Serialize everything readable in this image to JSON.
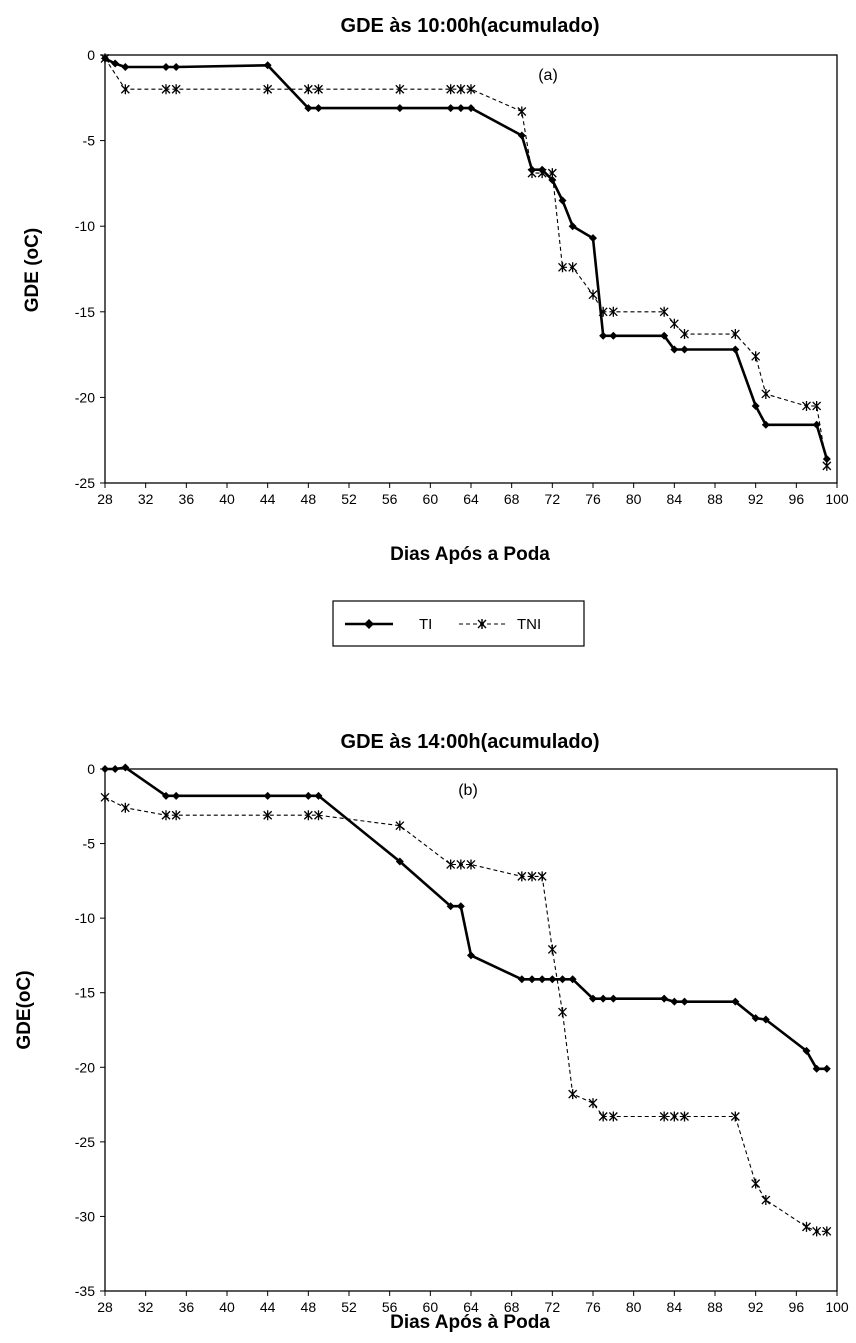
{
  "chart_data": [
    {
      "type": "line",
      "title": "GDE às 10:00h(acumulado)",
      "xlabel": "Dias Após a Poda",
      "ylabel": "GDE (oC)",
      "annotation": "(a)",
      "xlim": [
        28,
        100
      ],
      "ylim": [
        -25,
        0
      ],
      "x_ticks": [
        "28",
        "32",
        "36",
        "40",
        "44",
        "48",
        "52",
        "56",
        "60",
        "64",
        "68",
        "72",
        "76",
        "80",
        "84",
        "88",
        "92",
        "96",
        "100"
      ],
      "y_ticks": [
        "0",
        "-5",
        "-10",
        "-15",
        "-20",
        "-25"
      ],
      "grid": false,
      "series": [
        {
          "name": "TI",
          "color": "#000000",
          "style": "solid",
          "marker": "diamond",
          "x": [
            28,
            29,
            30,
            34,
            35,
            44,
            48,
            49,
            57,
            62,
            63,
            64,
            69,
            70,
            71,
            72,
            73,
            74,
            76,
            77,
            78,
            83,
            84,
            85,
            90,
            92,
            93,
            98,
            99
          ],
          "y": [
            -0.2,
            -0.5,
            -0.7,
            -0.7,
            -0.7,
            -0.6,
            -3.1,
            -3.1,
            -3.1,
            -3.1,
            -3.1,
            -3.1,
            -4.7,
            -6.7,
            -6.7,
            -7.3,
            -8.5,
            -10.0,
            -10.7,
            -16.4,
            -16.4,
            -16.4,
            -17.2,
            -17.2,
            -17.2,
            -20.5,
            -21.6,
            -21.6,
            -23.6
          ]
        },
        {
          "name": "TNI",
          "color": "#000000",
          "style": "dashed",
          "marker": "asterisk",
          "x": [
            28,
            30,
            34,
            35,
            44,
            48,
            49,
            57,
            62,
            63,
            64,
            69,
            70,
            71,
            72,
            73,
            74,
            76,
            77,
            78,
            83,
            84,
            85,
            90,
            92,
            93,
            97,
            98,
            99
          ],
          "y": [
            -0.2,
            -2.0,
            -2.0,
            -2.0,
            -2.0,
            -2.0,
            -2.0,
            -2.0,
            -2.0,
            -2.0,
            -2.0,
            -3.3,
            -6.9,
            -6.9,
            -6.9,
            -12.4,
            -12.4,
            -14.0,
            -15.0,
            -15.0,
            -15.0,
            -15.7,
            -16.3,
            -16.3,
            -17.6,
            -19.8,
            -20.5,
            -20.5,
            -24.0
          ]
        }
      ],
      "legend": {
        "placement": "bottom-center",
        "entries": [
          "TI",
          "TNI"
        ]
      }
    },
    {
      "type": "line",
      "title": "GDE às 14:00h(acumulado)",
      "xlabel": "Dias Após à Poda",
      "ylabel": "GDE(oC)",
      "annotation": "(b)",
      "xlim": [
        28,
        100
      ],
      "ylim": [
        -35,
        0
      ],
      "x_ticks": [
        "28",
        "32",
        "36",
        "40",
        "44",
        "48",
        "52",
        "56",
        "60",
        "64",
        "68",
        "72",
        "76",
        "80",
        "84",
        "88",
        "92",
        "96",
        "100"
      ],
      "y_ticks": [
        "0",
        "-5",
        "-10",
        "-15",
        "-20",
        "-25",
        "-30",
        "-35"
      ],
      "grid": false,
      "series": [
        {
          "name": "TI",
          "color": "#000000",
          "style": "solid",
          "marker": "diamond",
          "x": [
            28,
            29,
            30,
            34,
            35,
            44,
            48,
            49,
            57,
            62,
            63,
            64,
            69,
            70,
            71,
            72,
            73,
            74,
            76,
            77,
            78,
            83,
            84,
            85,
            90,
            92,
            93,
            97,
            98,
            99
          ],
          "y": [
            0,
            0,
            0.1,
            -1.8,
            -1.8,
            -1.8,
            -1.8,
            -1.8,
            -6.2,
            -9.2,
            -9.2,
            -12.5,
            -14.1,
            -14.1,
            -14.1,
            -14.1,
            -14.1,
            -14.1,
            -15.4,
            -15.4,
            -15.4,
            -15.4,
            -15.6,
            -15.6,
            -15.6,
            -16.7,
            -16.8,
            -18.9,
            -20.1,
            -20.1
          ]
        },
        {
          "name": "TNI",
          "color": "#000000",
          "style": "dashed",
          "marker": "asterisk",
          "x": [
            28,
            30,
            34,
            35,
            44,
            48,
            49,
            57,
            62,
            63,
            64,
            69,
            70,
            71,
            72,
            73,
            74,
            76,
            77,
            78,
            83,
            84,
            85,
            90,
            92,
            93,
            97,
            98,
            99
          ],
          "y": [
            -1.9,
            -2.6,
            -3.1,
            -3.1,
            -3.1,
            -3.1,
            -3.1,
            -3.8,
            -6.4,
            -6.4,
            -6.4,
            -7.2,
            -7.2,
            -7.2,
            -12.1,
            -16.3,
            -21.8,
            -22.4,
            -23.3,
            -23.3,
            -23.3,
            -23.3,
            -23.3,
            -23.3,
            -27.8,
            -28.9,
            -30.7,
            -31.0,
            -31.0
          ]
        }
      ]
    }
  ]
}
